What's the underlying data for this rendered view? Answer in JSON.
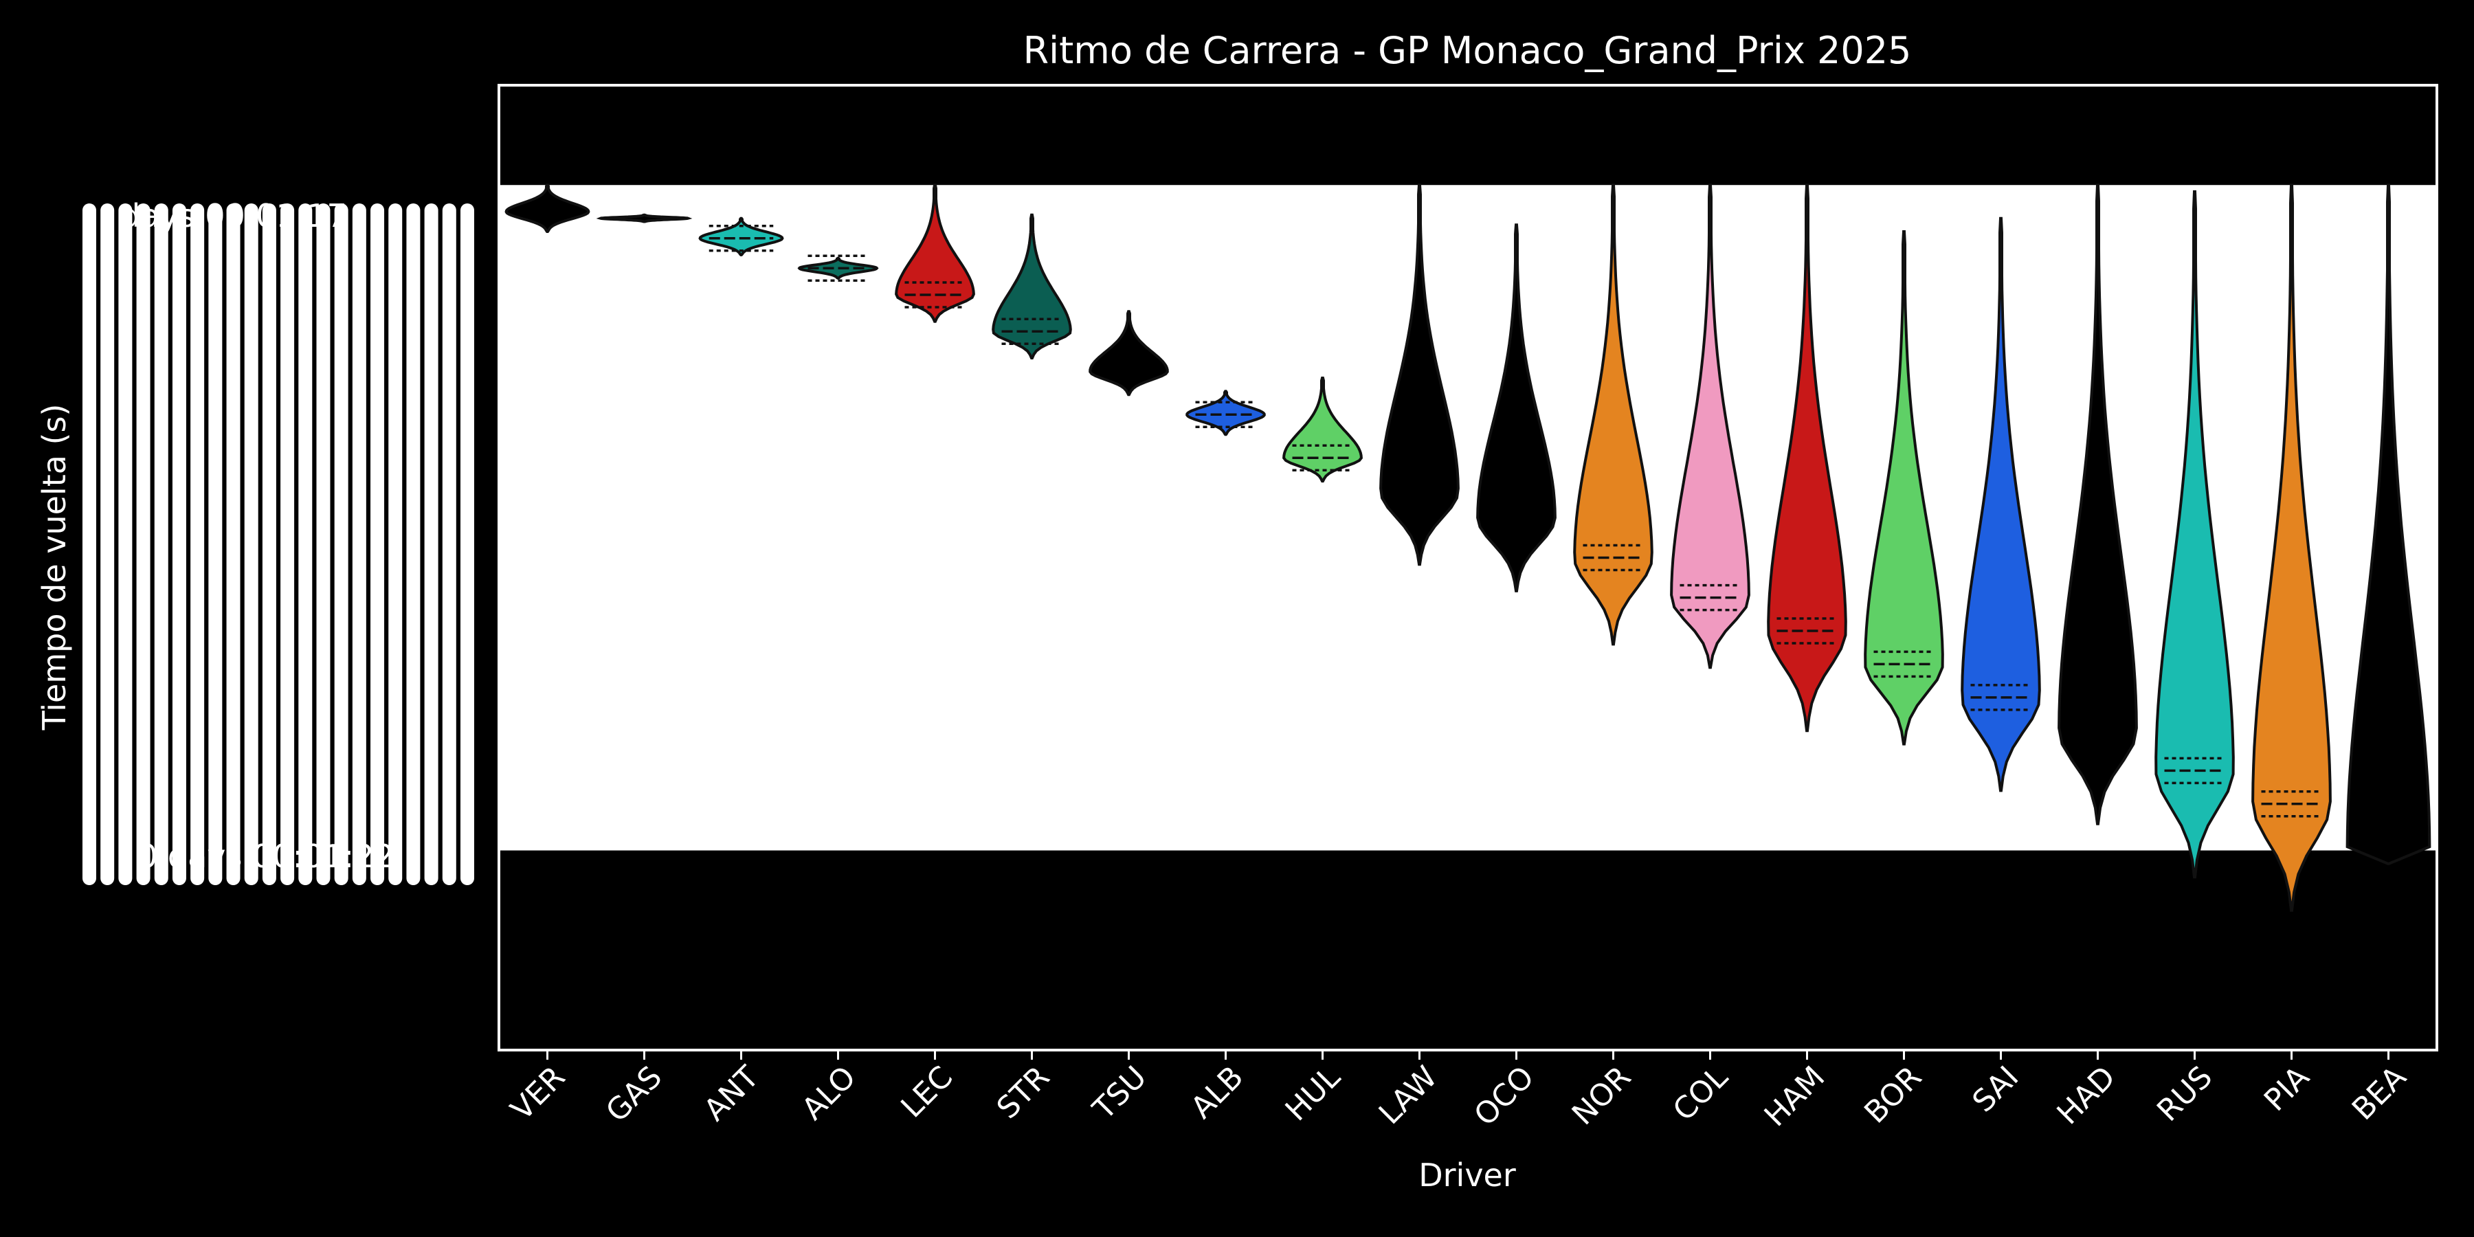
{
  "chart_data": {
    "type": "violin",
    "title": "Ritmo de Carrera - GP Monaco_Grand_Prix 2025",
    "xlabel": "Driver",
    "ylabel": "Tiempo de vuelta (s)",
    "categories": [
      "VER",
      "GAS",
      "ANT",
      "ALO",
      "LEC",
      "STR",
      "TSU",
      "ALB",
      "HUL",
      "LAW",
      "OCO",
      "NOR",
      "COL",
      "HAM",
      "BOR",
      "SAI",
      "HAD",
      "RUS",
      "PIA",
      "BEA"
    ],
    "ylim": [
      -0.3,
      1.15
    ],
    "yticks_visible_fragments": [
      "days 00:01:17",
      "0 days 00:01:22"
    ],
    "grid": false,
    "series": [
      {
        "driver": "VER",
        "center": 0.96,
        "top": 1.0,
        "bottom": 0.93,
        "width": 0.85,
        "color": "#000000",
        "quartiles": false
      },
      {
        "driver": "GAS",
        "center": 0.95,
        "top": 0.955,
        "bottom": 0.945,
        "width": 0.9,
        "color": "#000000",
        "quartiles": false
      },
      {
        "driver": "ANT",
        "center": 0.92,
        "top": 0.95,
        "bottom": 0.895,
        "width": 0.85,
        "color": "#1ABCB0",
        "quartiles": true
      },
      {
        "driver": "ALO",
        "center": 0.875,
        "top": 0.89,
        "bottom": 0.86,
        "width": 0.8,
        "color": "#0B6E5E",
        "quartiles": true
      },
      {
        "driver": "LEC",
        "center": 0.835,
        "top": 1.0,
        "bottom": 0.795,
        "width": 0.8,
        "color": "#C81818",
        "quartiles": true
      },
      {
        "driver": "STR",
        "center": 0.78,
        "top": 0.955,
        "bottom": 0.74,
        "width": 0.8,
        "color": "#0B5E52",
        "quartiles": true
      },
      {
        "driver": "TSU",
        "center": 0.72,
        "top": 0.81,
        "bottom": 0.685,
        "width": 0.8,
        "color": "#000000",
        "quartiles": false
      },
      {
        "driver": "ALB",
        "center": 0.655,
        "top": 0.69,
        "bottom": 0.625,
        "width": 0.8,
        "color": "#1E5FE0",
        "quartiles": true
      },
      {
        "driver": "HUL",
        "center": 0.59,
        "top": 0.71,
        "bottom": 0.555,
        "width": 0.8,
        "color": "#5FD066",
        "quartiles": true
      },
      {
        "driver": "LAW",
        "center": 0.54,
        "top": 1.0,
        "bottom": 0.43,
        "width": 0.8,
        "color": "#000000",
        "quartiles": false
      },
      {
        "driver": "OCO",
        "center": 0.5,
        "top": 0.94,
        "bottom": 0.39,
        "width": 0.8,
        "color": "#000000",
        "quartiles": false
      },
      {
        "driver": "NOR",
        "center": 0.44,
        "top": 1.0,
        "bottom": 0.31,
        "width": 0.8,
        "color": "#E48420",
        "quartiles": true
      },
      {
        "driver": "COL",
        "center": 0.38,
        "top": 1.0,
        "bottom": 0.275,
        "width": 0.8,
        "color": "#F09AC0",
        "quartiles": true
      },
      {
        "driver": "HAM",
        "center": 0.33,
        "top": 1.0,
        "bottom": 0.18,
        "width": 0.8,
        "color": "#C81818",
        "quartiles": true
      },
      {
        "driver": "BOR",
        "center": 0.28,
        "top": 0.93,
        "bottom": 0.16,
        "width": 0.8,
        "color": "#5FD066",
        "quartiles": true
      },
      {
        "driver": "SAI",
        "center": 0.23,
        "top": 0.95,
        "bottom": 0.09,
        "width": 0.8,
        "color": "#1E5FE0",
        "quartiles": true
      },
      {
        "driver": "HAD",
        "center": 0.18,
        "top": 1.0,
        "bottom": 0.04,
        "width": 0.8,
        "color": "#000000",
        "quartiles": false
      },
      {
        "driver": "RUS",
        "center": 0.12,
        "top": 0.99,
        "bottom": -0.04,
        "width": 0.8,
        "color": "#1ABCB0",
        "quartiles": true
      },
      {
        "driver": "PIA",
        "center": 0.07,
        "top": 1.0,
        "bottom": -0.09,
        "width": 0.8,
        "color": "#E48420",
        "quartiles": true
      },
      {
        "driver": "BEA",
        "center": 0.0,
        "top": 1.0,
        "bottom": -0.02,
        "width": 0.85,
        "color": "#000000",
        "quartiles": false
      }
    ],
    "panel_band": {
      "top_value": 1.0,
      "bottom_value": 0.0
    }
  }
}
